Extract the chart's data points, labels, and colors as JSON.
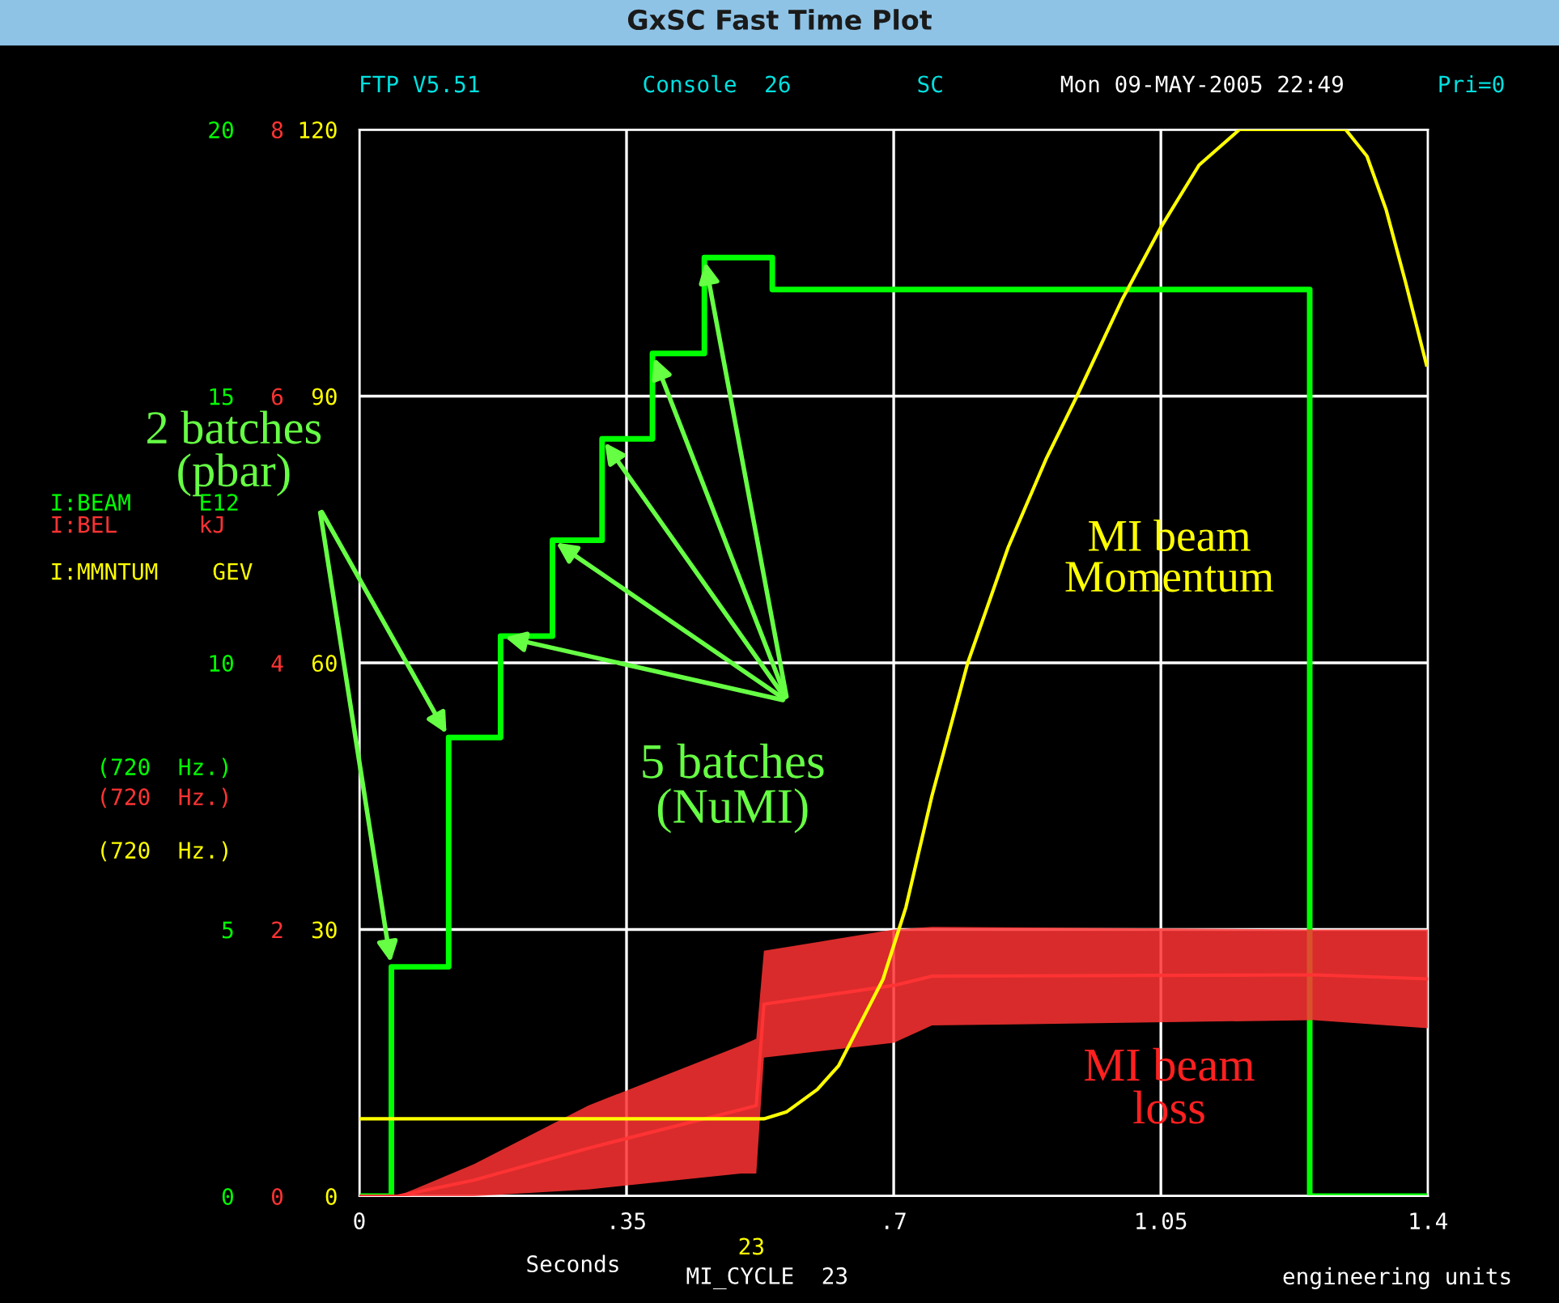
{
  "chart_data": {
    "type": "line",
    "title": "GxSC Fast Time Plot",
    "xlabel": "Seconds",
    "xlim": [
      0,
      1.4
    ],
    "xticks": [
      0,
      {
        "value": 0.35,
        "label": ".35"
      },
      {
        "value": 0.7,
        "label": ".7"
      },
      1.05,
      1.4
    ],
    "ylim": [
      0,
      20
    ],
    "yticks": [
      0,
      5,
      10,
      15,
      20
    ],
    "y2lim": [
      0,
      8
    ],
    "y2ticks": [
      0,
      2,
      4,
      6,
      8
    ],
    "y3lim": [
      0,
      120
    ],
    "y3ticks": [
      0,
      30,
      60,
      90,
      120
    ],
    "grid": true,
    "series": [
      {
        "type": "step",
        "color": "#00ff00",
        "axis": "y",
        "x": [
          0,
          0.042,
          0.117,
          0.185,
          0.253,
          0.318,
          0.384,
          0.452,
          0.541,
          1.245,
          1.4
        ],
        "values": [
          0,
          4.3,
          8.6,
          10.5,
          12.3,
          14.2,
          15.8,
          17.6,
          17.0,
          0,
          0
        ]
      },
      {
        "type": "line",
        "color": "#ff3333",
        "axis": "y2",
        "x": [
          0,
          0.05,
          0.15,
          0.3,
          0.5,
          0.52,
          0.53,
          0.7,
          0.75,
          1.25,
          1.4
        ],
        "values": [
          0,
          0,
          0.12,
          0.36,
          0.65,
          0.68,
          1.44,
          1.58,
          1.65,
          1.66,
          1.63
        ],
        "lower": [
          0,
          0,
          0,
          0.05,
          0.17,
          0.17,
          1.04,
          1.15,
          1.28,
          1.32,
          1.26
        ],
        "upper": [
          0,
          0,
          0.24,
          0.68,
          1.13,
          1.18,
          1.84,
          2.0,
          2.02,
          2.0,
          2.0
        ]
      },
      {
        "type": "line",
        "color": "#ffff00",
        "axis": "y3",
        "x": [
          0,
          0.53,
          0.56,
          0.6,
          0.628,
          0.686,
          0.716,
          0.75,
          0.797,
          0.85,
          0.9,
          0.94,
          1.0,
          1.05,
          1.1,
          1.153,
          1.292,
          1.32,
          1.345,
          1.37,
          1.398
        ],
        "values": [
          8.7,
          8.7,
          9.5,
          12,
          14.7,
          24.4,
          32.5,
          45,
          60,
          73,
          83,
          90,
          101,
          109,
          116,
          120,
          120,
          117,
          111,
          103,
          93.5
        ]
      }
    ],
    "annotations": [
      {
        "text": "2 batches\n(pbar)",
        "x": 0.117,
        "y": 8.6
      },
      {
        "text": "5 batches\n(NuMI)",
        "x": 0.452,
        "y": 17.6
      },
      "MI beam\nMomentum",
      "MI beam\nloss",
      "FTP V5.51",
      "Console  26",
      "SC",
      "Mon 09-MAY-2005 22:49",
      "Pri=0",
      "(720  Hz.)",
      "(720  Hz.)",
      "(720  Hz.)",
      "MI_CYCLE  23",
      "23",
      "engineering units",
      "I:BEAM     E12",
      "I:BEL      kJ",
      "I:MMNTUM    GEV"
    ]
  }
}
